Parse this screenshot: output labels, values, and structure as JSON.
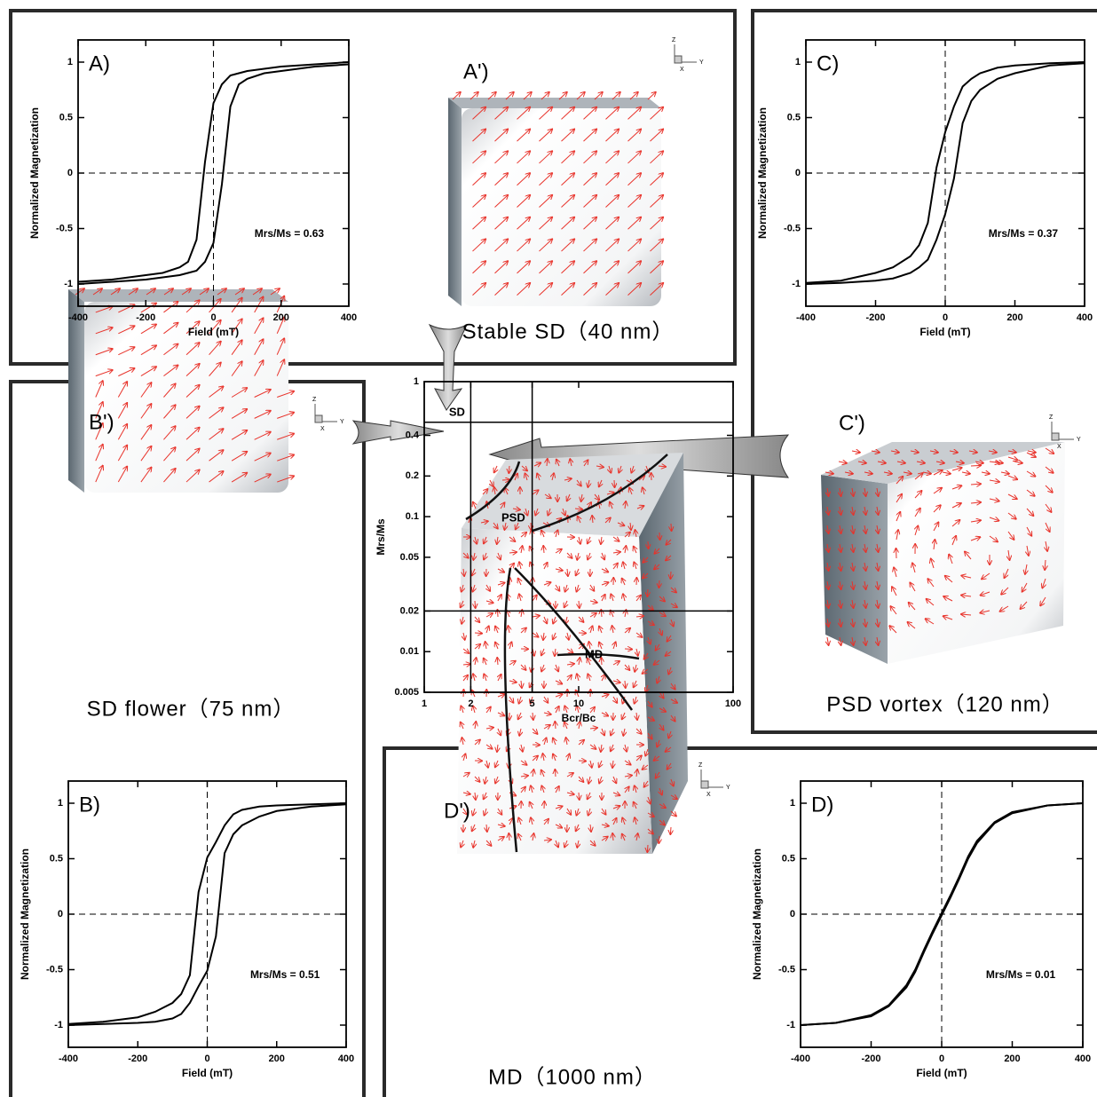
{
  "chart_data": [
    {
      "type": "line",
      "title": "A)",
      "xlabel": "Field (mT)",
      "ylabel": "Normalized Magnetization",
      "annotation": "Mrs/Ms = 0.63",
      "x": [
        -400,
        -300,
        -200,
        -150,
        -100,
        -75,
        -50,
        -25,
        0,
        25,
        50,
        75,
        100,
        150,
        200,
        300,
        400
      ],
      "series": [
        {
          "color": "#000000",
          "values": [
            -0.98,
            -0.96,
            -0.92,
            -0.9,
            -0.85,
            -0.8,
            -0.6,
            0.1,
            0.63,
            0.8,
            0.88,
            0.9,
            0.92,
            0.94,
            0.96,
            0.98,
            1.0
          ]
        },
        {
          "color": "#000000",
          "values": [
            -1.0,
            -0.98,
            -0.96,
            -0.94,
            -0.92,
            -0.9,
            -0.88,
            -0.8,
            -0.63,
            -0.1,
            0.6,
            0.8,
            0.85,
            0.9,
            0.92,
            0.96,
            0.98
          ]
        }
      ],
      "xlim": [
        -400,
        400
      ],
      "ylim": [
        -1.2,
        1.2
      ],
      "xticks": [
        -400,
        -200,
        0,
        200,
        400
      ],
      "yticks": [
        -1,
        -0.5,
        0,
        0.5,
        1
      ],
      "zero_lines": true
    },
    {
      "type": "line",
      "title": "B)",
      "xlabel": "Field (mT)",
      "ylabel": "Normalized Magnetization",
      "annotation": "Mrs/Ms = 0.51",
      "x": [
        -400,
        -300,
        -200,
        -150,
        -100,
        -75,
        -50,
        -25,
        0,
        25,
        50,
        75,
        100,
        150,
        200,
        300,
        400
      ],
      "series": [
        {
          "color": "#000000",
          "values": [
            -0.99,
            -0.97,
            -0.93,
            -0.88,
            -0.8,
            -0.72,
            -0.55,
            0.2,
            0.51,
            0.65,
            0.8,
            0.9,
            0.94,
            0.97,
            0.98,
            0.99,
            1.0
          ]
        },
        {
          "color": "#000000",
          "values": [
            -1.0,
            -0.99,
            -0.98,
            -0.97,
            -0.94,
            -0.9,
            -0.8,
            -0.65,
            -0.51,
            -0.2,
            0.55,
            0.72,
            0.8,
            0.88,
            0.93,
            0.97,
            0.99
          ]
        }
      ],
      "xlim": [
        -400,
        400
      ],
      "ylim": [
        -1.2,
        1.2
      ],
      "xticks": [
        -400,
        -200,
        0,
        200,
        400
      ],
      "yticks": [
        -1,
        -0.5,
        0,
        0.5,
        1
      ],
      "zero_lines": true
    },
    {
      "type": "line",
      "title": "C)",
      "xlabel": "Field (mT)",
      "ylabel": "Normalized Magnetization",
      "annotation": "Mrs/Ms = 0.37",
      "x": [
        -400,
        -300,
        -200,
        -150,
        -100,
        -75,
        -50,
        -25,
        0,
        25,
        50,
        75,
        100,
        150,
        200,
        300,
        400
      ],
      "series": [
        {
          "color": "#000000",
          "values": [
            -0.99,
            -0.97,
            -0.9,
            -0.85,
            -0.75,
            -0.65,
            -0.45,
            0.05,
            0.37,
            0.6,
            0.78,
            0.85,
            0.9,
            0.95,
            0.97,
            0.99,
            1.0
          ]
        },
        {
          "color": "#000000",
          "values": [
            -1.0,
            -0.99,
            -0.97,
            -0.95,
            -0.9,
            -0.85,
            -0.78,
            -0.6,
            -0.37,
            -0.05,
            0.45,
            0.65,
            0.75,
            0.85,
            0.9,
            0.97,
            0.99
          ]
        }
      ],
      "xlim": [
        -400,
        400
      ],
      "ylim": [
        -1.2,
        1.2
      ],
      "xticks": [
        -400,
        -200,
        0,
        200,
        400
      ],
      "yticks": [
        -1,
        -0.5,
        0,
        0.5,
        1
      ],
      "zero_lines": true
    },
    {
      "type": "line",
      "title": "D)",
      "xlabel": "Field (mT)",
      "ylabel": "Normalized Magnetization",
      "annotation": "Mrs/Ms = 0.01",
      "x": [
        -400,
        -300,
        -200,
        -150,
        -100,
        -75,
        -50,
        -25,
        0,
        25,
        50,
        75,
        100,
        150,
        200,
        300,
        400
      ],
      "series": [
        {
          "color": "#000000",
          "values": [
            -1.0,
            -0.98,
            -0.91,
            -0.82,
            -0.64,
            -0.5,
            -0.32,
            -0.15,
            0.01,
            0.17,
            0.34,
            0.52,
            0.66,
            0.83,
            0.92,
            0.98,
            1.0
          ]
        },
        {
          "color": "#000000",
          "values": [
            -1.0,
            -0.98,
            -0.92,
            -0.83,
            -0.66,
            -0.52,
            -0.34,
            -0.17,
            -0.01,
            0.15,
            0.32,
            0.5,
            0.64,
            0.82,
            0.91,
            0.98,
            1.0
          ]
        }
      ],
      "xlim": [
        -400,
        400
      ],
      "ylim": [
        -1.2,
        1.2
      ],
      "xticks": [
        -400,
        -200,
        0,
        200,
        400
      ],
      "yticks": [
        -1,
        -0.5,
        0,
        0.5,
        1
      ],
      "zero_lines": true
    },
    {
      "type": "divisions",
      "xlabel": "Bcr/Bc",
      "ylabel": "Mrs/Ms",
      "xscale": "log",
      "yscale": "log",
      "xlim": [
        1,
        100
      ],
      "ylim": [
        0.005,
        1
      ],
      "xticks": [
        1,
        2,
        5,
        10,
        100
      ],
      "yticks": [
        0.005,
        0.01,
        0.02,
        0.05,
        0.1,
        0.2,
        0.4,
        1
      ],
      "hlines": [
        0.5,
        0.02
      ],
      "vlines": [
        2,
        5
      ],
      "regions": [
        "SD",
        "PSD",
        "MD"
      ]
    }
  ],
  "panels": [
    {
      "label": "A')",
      "caption": "Stable SD（40 nm）",
      "triad": [
        "Z",
        "Y",
        "X"
      ]
    },
    {
      "label": "B')",
      "caption": "SD flower（75 nm）",
      "triad": [
        "Z",
        "Y",
        "X"
      ]
    },
    {
      "label": "C')",
      "caption": "PSD vortex（120 nm）",
      "triad": [
        "Z",
        "Y",
        "X"
      ]
    },
    {
      "label": "D')",
      "caption": "MD（1000 nm）",
      "triad": [
        "Z",
        "Y",
        "X"
      ]
    }
  ]
}
